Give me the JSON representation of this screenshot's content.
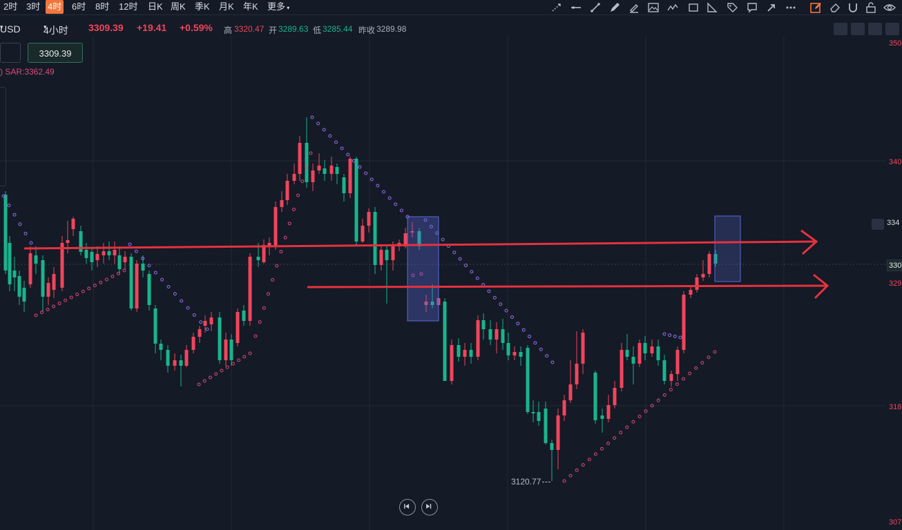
{
  "toolbar": {
    "timeframes": [
      "2时",
      "3时",
      "4时",
      "6时",
      "8时",
      "12时",
      "日K",
      "周K",
      "季K",
      "月K",
      "年K",
      "更多"
    ],
    "active_timeframe": "4时",
    "tool_icons": [
      "ray-tool-icon",
      "horizontal-line-icon",
      "trend-line-icon",
      "pen-icon",
      "highlighter-icon",
      "image-icon",
      "line-chart-icon",
      "rectangle-icon",
      "angle-icon",
      "tag-icon",
      "callout-icon",
      "arrow-icon",
      "more-icon",
      "edit-active-icon",
      "eraser-icon",
      "magnet-icon",
      "lock-icon",
      "eye-icon"
    ]
  },
  "info": {
    "symbol": "USD",
    "interval": "4小时",
    "price": "3309.39",
    "change": "+19.41",
    "change_pct": "+0.59%",
    "high_label": "高",
    "high": "3320.47",
    "open_label": "开",
    "open": "3289.63",
    "low_label": "低",
    "low": "3285.44",
    "prev_close_label": "昨收",
    "prev_close": "3289.98"
  },
  "order_box": {
    "price": "3309.39"
  },
  "indicator": {
    "sar_label": ")   SAR:3362.49"
  },
  "low_marker": "3120.77",
  "axis": {
    "labels": [
      "350",
      "340",
      "334",
      "330",
      "329",
      "318",
      "307"
    ]
  },
  "colors": {
    "up": "#f0455c",
    "down": "#19b48c",
    "sar": "#9a6ff0",
    "sar_low": "#e04a7c",
    "line": "#e6323e",
    "box": "#5a6ad8"
  }
}
